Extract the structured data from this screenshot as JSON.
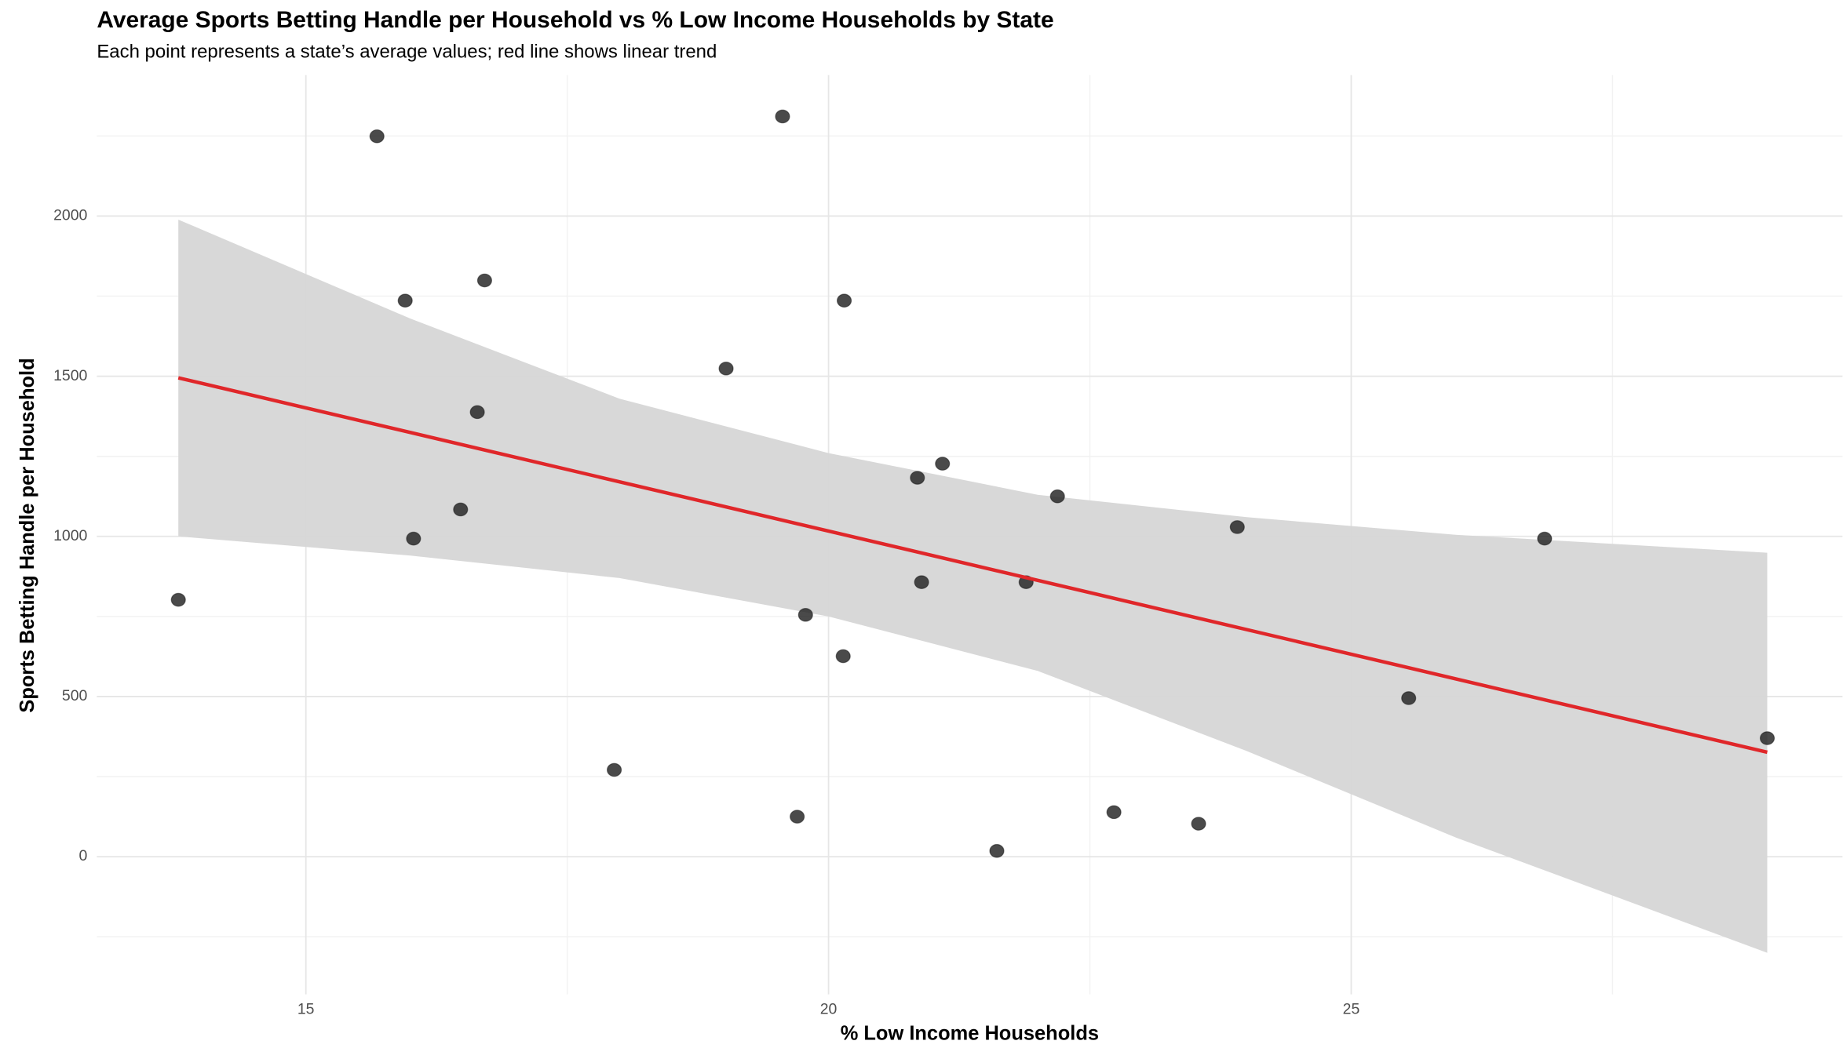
{
  "chart_data": {
    "type": "scatter",
    "title": "Average Sports Betting Handle per Household vs % Low Income Households by State",
    "subtitle": "Each point represents a state’s average values; red line shows linear trend",
    "x_label": "% Low Income Households",
    "y_label": "Sports Betting Handle per Household",
    "xlim": [
      13.0,
      29.7
    ],
    "ylim": [
      -430,
      2440
    ],
    "xticks": [
      15,
      20,
      25
    ],
    "yticks": [
      0,
      500,
      1000,
      1500,
      2000
    ],
    "grid": true,
    "series": [
      {
        "color": "#222222",
        "x": [
          13.78,
          15.68,
          15.95,
          16.03,
          16.48,
          16.64,
          16.71,
          17.95,
          19.02,
          19.56,
          19.7,
          19.78,
          20.14,
          20.15,
          20.85,
          20.89,
          21.09,
          21.61,
          21.89,
          22.19,
          22.73,
          23.54,
          23.91,
          25.55,
          26.85,
          28.98
        ],
        "values": [
          802,
          2249,
          1736,
          993,
          1084,
          1388,
          1799,
          271,
          1524,
          2311,
          125,
          755,
          626,
          1736,
          1183,
          857,
          1227,
          18,
          857,
          1125,
          139,
          103,
          1029,
          495,
          993,
          370
        ]
      }
    ],
    "trend": {
      "color": "#e0272a",
      "x": [
        13.78,
        28.98
      ],
      "values": [
        1495,
        326
      ]
    },
    "band": {
      "color": "#d6d6d6",
      "x": [
        13.78,
        16,
        18,
        20,
        22,
        24,
        26,
        28.98
      ],
      "upper": [
        1989,
        1680,
        1430,
        1260,
        1130,
        1060,
        1005,
        949
      ],
      "lower": [
        1000,
        940,
        870,
        750,
        580,
        330,
        60,
        -300
      ]
    }
  }
}
